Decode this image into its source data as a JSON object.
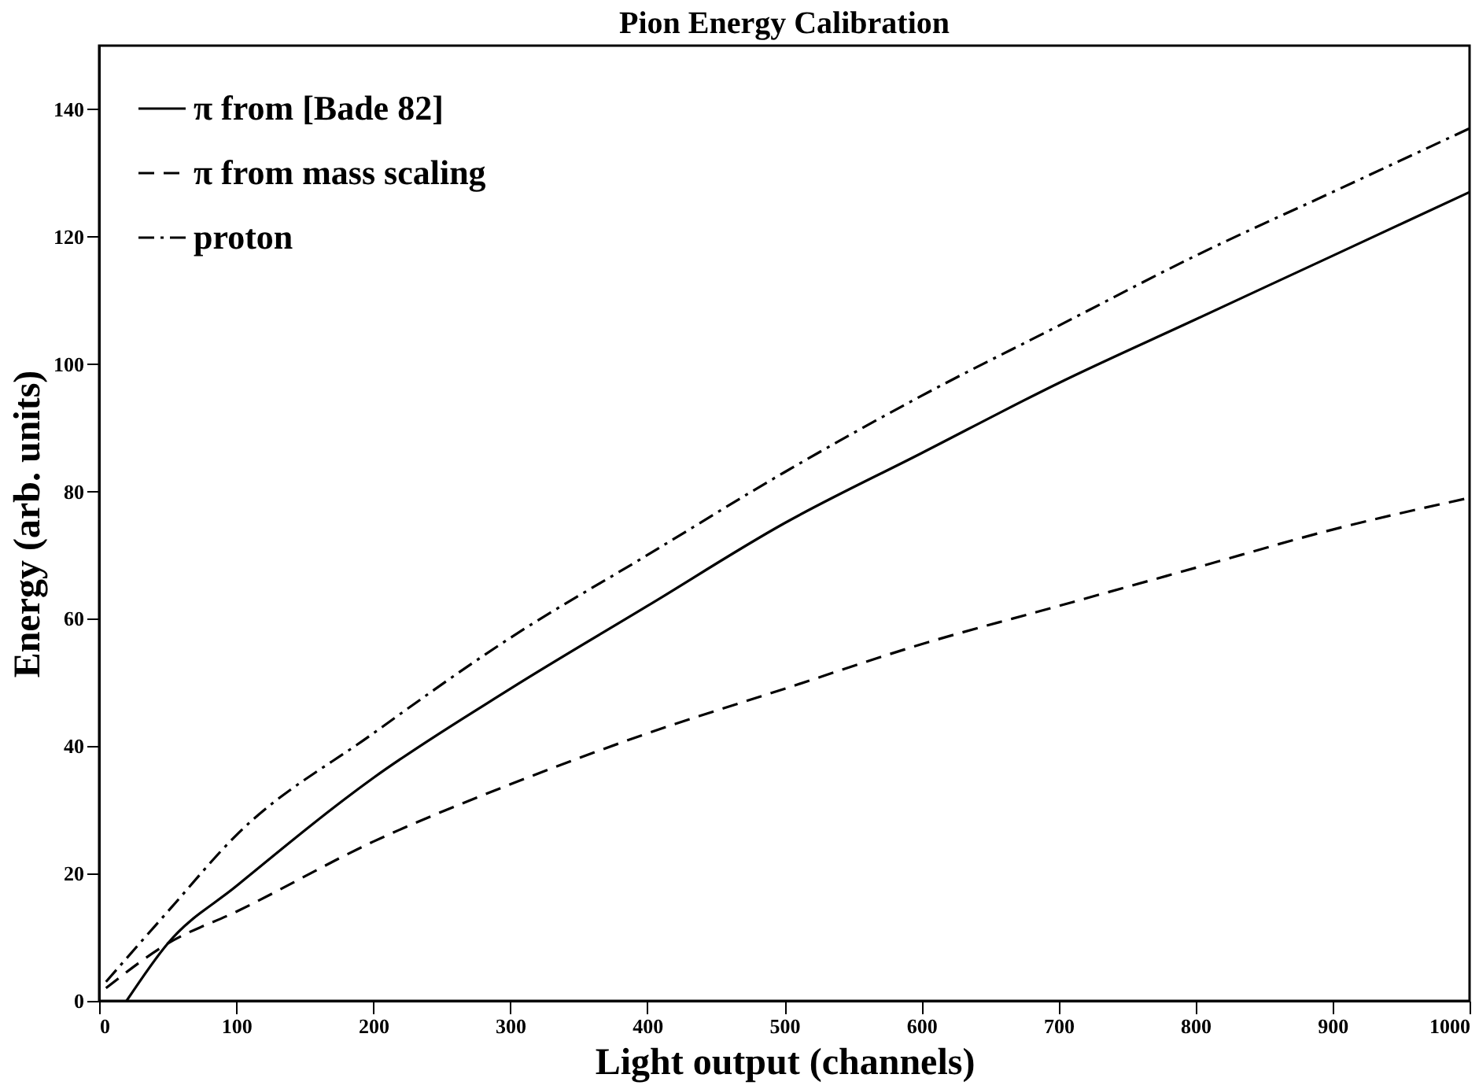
{
  "chart_data": {
    "type": "line",
    "title": "Pion Energy Calibration",
    "xlabel": "Light output (channels)",
    "ylabel": "Energy (arb. units)",
    "xlim": [
      0,
      1000
    ],
    "xticks": [
      0,
      100,
      200,
      300,
      400,
      500,
      600,
      700,
      800,
      900,
      1000
    ],
    "ylim": [
      0,
      150
    ],
    "yticks": [
      0,
      20,
      40,
      60,
      80,
      100,
      120,
      140
    ],
    "grid": false,
    "legend": "top left",
    "marker": "none",
    "series": [
      {
        "name": "π from [Bade 82]",
        "color": "#000000",
        "line_style": "solid",
        "x": [
          20,
          50,
          100,
          200,
          300,
          400,
          500,
          600,
          700,
          800,
          900,
          1000
        ],
        "values": [
          0,
          9,
          18,
          35,
          49,
          62,
          75,
          86,
          97,
          107,
          117,
          127
        ]
      },
      {
        "name": "π from mass scaling",
        "color": "#000000",
        "line_style": "dashed",
        "x": [
          5,
          50,
          100,
          200,
          300,
          400,
          500,
          600,
          700,
          800,
          900,
          1000
        ],
        "values": [
          2,
          9,
          14,
          25,
          34,
          42,
          49,
          56,
          62,
          68,
          74,
          79
        ]
      },
      {
        "name": "proton",
        "color": "#000000",
        "line_style": "dashdot",
        "x": [
          5,
          50,
          100,
          200,
          300,
          400,
          500,
          600,
          700,
          800,
          900,
          1000
        ],
        "values": [
          3,
          14,
          26,
          42,
          57,
          70,
          83,
          95,
          106,
          117,
          127,
          137
        ]
      }
    ]
  }
}
